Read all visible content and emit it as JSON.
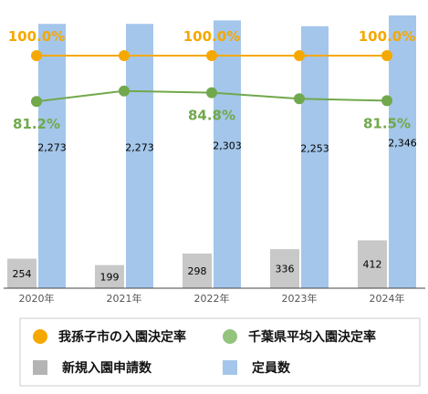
{
  "chart_data": {
    "type": "bar",
    "categories": [
      "2020年",
      "2021年",
      "2022年",
      "2023年",
      "2024年"
    ],
    "series": [
      {
        "name": "新規入園申請数",
        "kind": "bar",
        "color": "#c8c8c8",
        "values": [
          254,
          199,
          298,
          336,
          412
        ]
      },
      {
        "name": "定員数",
        "kind": "bar",
        "color": "#a4c6ea",
        "values": [
          2273,
          2273,
          2303,
          2253,
          2346
        ]
      },
      {
        "name": "我孫子市の入園決定率",
        "kind": "line",
        "color": "#f5a800",
        "values": [
          100.0,
          100.0,
          100.0,
          100.0,
          100.0
        ]
      },
      {
        "name": "千葉県平均入園決定率",
        "kind": "line",
        "color": "#71a84c",
        "values": [
          81.2,
          85.5,
          84.8,
          82.3,
          81.5
        ]
      }
    ],
    "count_labels": [
      "254",
      "199",
      "298",
      "336",
      "412"
    ],
    "capacity_labels": [
      "2,273",
      "2,273",
      "2,303",
      "2,253",
      "2,346"
    ],
    "rate_labels": [
      {
        "series": "我孫子市の入園決定率",
        "index": 0,
        "text": "100.0%"
      },
      {
        "series": "我孫子市の入園決定率",
        "index": 2,
        "text": "100.0%"
      },
      {
        "series": "我孫子市の入園決定率",
        "index": 4,
        "text": "100.0%"
      },
      {
        "series": "千葉県平均入園決定率",
        "index": 0,
        "text": "81.2%"
      },
      {
        "series": "千葉県平均入園決定率",
        "index": 2,
        "text": "84.8%"
      },
      {
        "series": "千葉県平均入園決定率",
        "index": 4,
        "text": "81.5%"
      }
    ],
    "legend": [
      {
        "label": "我孫子市の入園決定率",
        "marker": "circle",
        "color": "#f5a800"
      },
      {
        "label": "千葉県平均入園決定率",
        "marker": "circle",
        "color": "#93c47d"
      },
      {
        "label": "新規入園申請数",
        "marker": "square",
        "color": "#b4b4b4"
      },
      {
        "label": "定員数",
        "marker": "square",
        "color": "#a4c6ea"
      }
    ],
    "legend_position": "bottom",
    "grid": false
  }
}
